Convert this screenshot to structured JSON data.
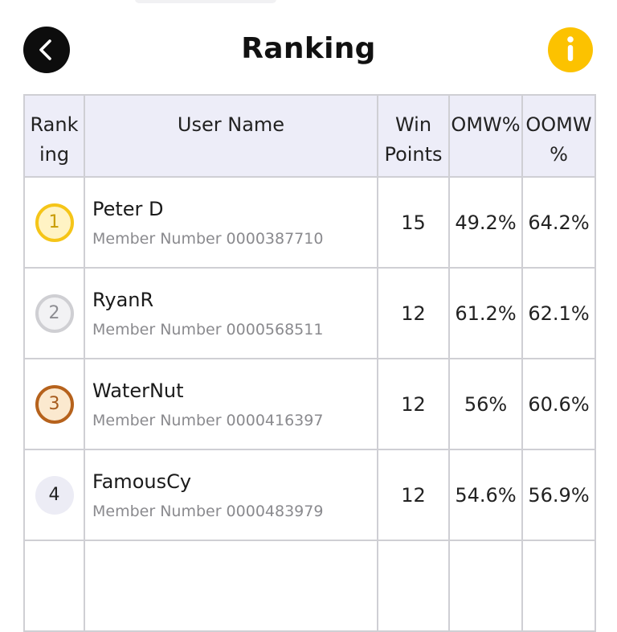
{
  "header": {
    "title": "Ranking"
  },
  "table": {
    "headers": {
      "rank_line1": "Rank",
      "rank_line2": "ing",
      "user": "User Name",
      "win_line1": "Win",
      "win_line2": "Points",
      "omw": "OMW%",
      "oomw_line1": "OOMW",
      "oomw_line2": "%"
    },
    "rows": [
      {
        "rank": "1",
        "name": "Peter D",
        "member": "Member Number 0000387710",
        "win": "15",
        "omw": "49.2%",
        "oomw": "64.2%"
      },
      {
        "rank": "2",
        "name": "RyanR",
        "member": "Member Number 0000568511",
        "win": "12",
        "omw": "61.2%",
        "oomw": "62.1%"
      },
      {
        "rank": "3",
        "name": "WaterNut",
        "member": "Member Number 0000416397",
        "win": "12",
        "omw": "56%",
        "oomw": "60.6%"
      },
      {
        "rank": "4",
        "name": "FamousCy",
        "member": "Member Number 0000483979",
        "win": "12",
        "omw": "54.6%",
        "oomw": "56.9%"
      }
    ]
  },
  "colors": {
    "info_button": "#fcc200",
    "back_button": "#0d0d0d",
    "header_bg": "#ededf8"
  },
  "icons": {
    "back": "chevron-left-icon",
    "info": "info-icon"
  }
}
